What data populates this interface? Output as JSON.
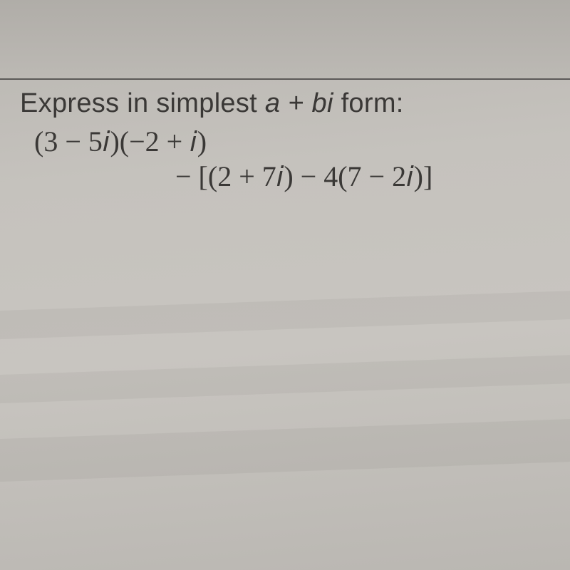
{
  "page": {
    "background_gradient": [
      "#b8b5b0",
      "#c5c2bd",
      "#c8c5c0",
      "#bab7b2"
    ],
    "divider_color": "#4a4846",
    "text_color": "#3a3836",
    "prompt_fontsize": 38,
    "math_fontsize": 40,
    "math_font": "Cambria Math"
  },
  "prompt": {
    "prefix": "Express in simplest ",
    "formula": "a + bi",
    "suffix": " form:"
  },
  "expression": {
    "line1": "(3 − 5𝑖)(−2 + 𝑖)",
    "line2": "− [(2 + 7𝑖) − 4(7 − 2𝑖)]"
  }
}
